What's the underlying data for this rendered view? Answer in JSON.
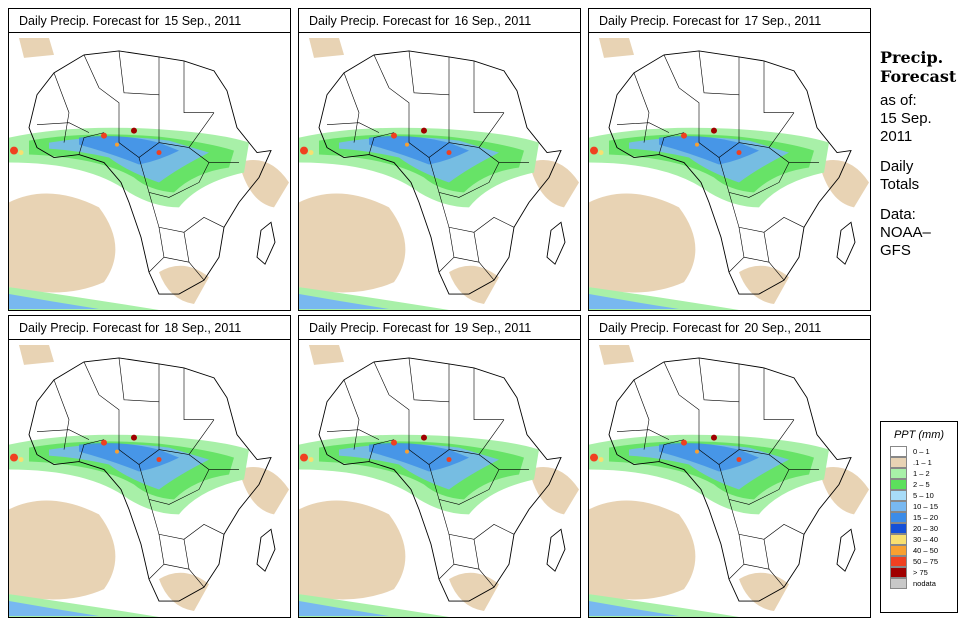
{
  "panels": [
    {
      "title": "Daily Precip. Forecast for",
      "date": "15 Sep., 2011"
    },
    {
      "title": "Daily Precip. Forecast for",
      "date": "16 Sep., 2011"
    },
    {
      "title": "Daily Precip. Forecast for",
      "date": "17 Sep., 2011"
    },
    {
      "title": "Daily Precip. Forecast for",
      "date": "18 Sep., 2011"
    },
    {
      "title": "Daily Precip. Forecast for",
      "date": "19 Sep., 2011"
    },
    {
      "title": "Daily Precip. Forecast for",
      "date": "20 Sep., 2011"
    }
  ],
  "side": {
    "head1": "Precip.",
    "head2": "Forecast",
    "asof1": "as of:",
    "asof2": "15 Sep.",
    "asof3": "2011",
    "daily1": "Daily",
    "daily2": "Totals",
    "data1": "Data:",
    "data2": "NOAA–",
    "data3": "GFS"
  },
  "legend": {
    "title": "PPT (mm)",
    "items": [
      {
        "label": "0 – 1",
        "color": "#ffffff"
      },
      {
        "label": ".1 – 1",
        "color": "#e8d3b4"
      },
      {
        "label": "1 – 2",
        "color": "#a8f0a8"
      },
      {
        "label": "2 – 5",
        "color": "#5ce05c"
      },
      {
        "label": "5 – 10",
        "color": "#a8dcf8"
      },
      {
        "label": "10 – 15",
        "color": "#78b8f0"
      },
      {
        "label": "15 – 20",
        "color": "#3c8ce8"
      },
      {
        "label": "20 – 30",
        "color": "#1450d8"
      },
      {
        "label": "30 – 40",
        "color": "#f8e070"
      },
      {
        "label": "40 – 50",
        "color": "#f8a030"
      },
      {
        "label": "50 – 75",
        "color": "#f04020"
      },
      {
        "label": "> 75",
        "color": "#a00000"
      },
      {
        "label": "nodata",
        "color": "#c8c8c8"
      }
    ]
  }
}
